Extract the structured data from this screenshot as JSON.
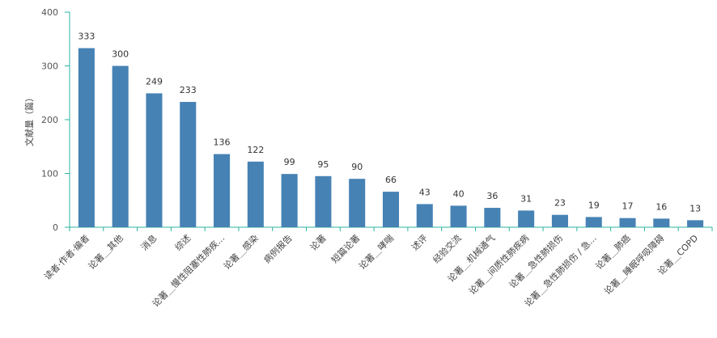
{
  "chart_data": {
    "type": "bar",
    "ylabel": "文献量（篇）",
    "ylim": [
      0,
      400
    ],
    "yticks": [
      0,
      100,
      200,
      300,
      400
    ],
    "grid": false,
    "categories": [
      "读者·作者·编者",
      "论著＿其他",
      "消息",
      "综述",
      "论著＿慢性阻塞性肺疾...",
      "论著＿感染",
      "病例报告",
      "论著",
      "短篇论著",
      "论著＿哮喘",
      "述评",
      "经验交流",
      "论著＿机械通气",
      "论著＿间质性肺疾病",
      "论著＿急性肺损伤",
      "论著＿急性肺损伤 / 急...",
      "论著＿肺癌",
      "论著＿睡眠呼吸障碍",
      "论著＿COPD"
    ],
    "values": [
      333,
      300,
      249,
      233,
      136,
      122,
      99,
      95,
      90,
      66,
      43,
      40,
      36,
      31,
      23,
      19,
      17,
      16,
      13
    ],
    "colors": {
      "bar": "#4682b4",
      "axis": "#2bb3a0"
    }
  }
}
